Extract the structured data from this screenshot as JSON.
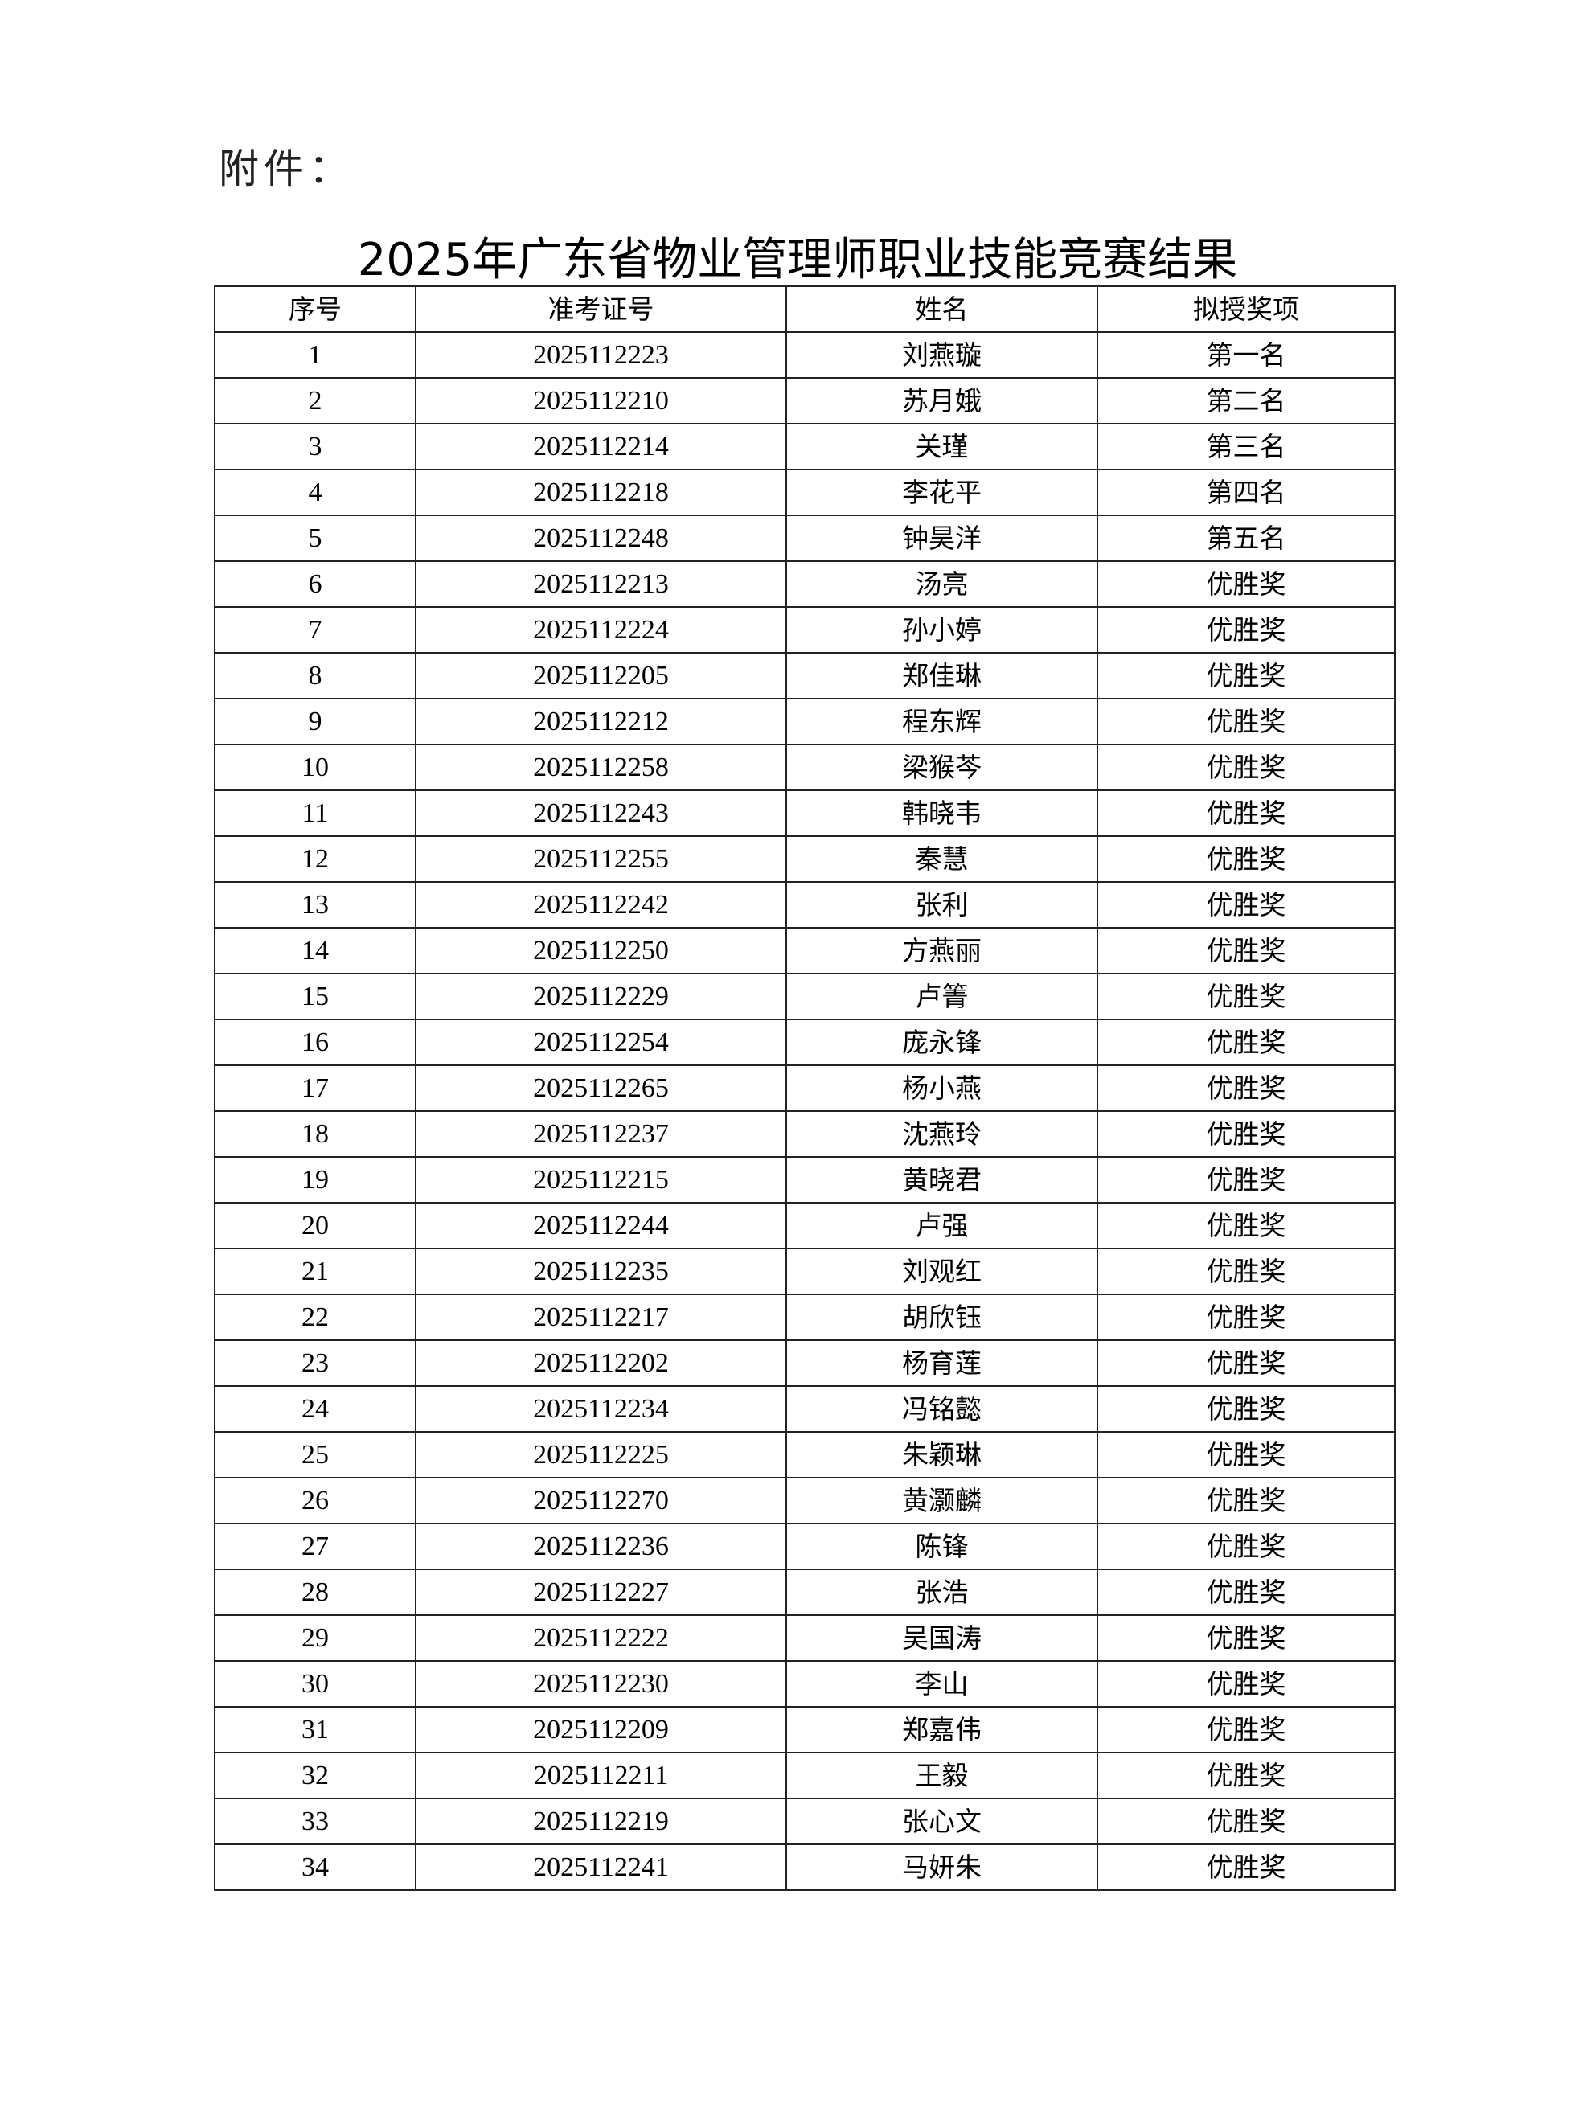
{
  "attachment_label": "附件：",
  "title": "2025年广东省物业管理师职业技能竞赛结果",
  "table": {
    "headers": [
      "序号",
      "准考证号",
      "姓名",
      "拟授奖项"
    ],
    "rows": [
      [
        "1",
        "2025112223",
        "刘燕璇",
        "第一名"
      ],
      [
        "2",
        "2025112210",
        "苏月娥",
        "第二名"
      ],
      [
        "3",
        "2025112214",
        "关瑾",
        "第三名"
      ],
      [
        "4",
        "2025112218",
        "李花平",
        "第四名"
      ],
      [
        "5",
        "2025112248",
        "钟昊洋",
        "第五名"
      ],
      [
        "6",
        "2025112213",
        "汤亮",
        "优胜奖"
      ],
      [
        "7",
        "2025112224",
        "孙小婷",
        "优胜奖"
      ],
      [
        "8",
        "2025112205",
        "郑佳琳",
        "优胜奖"
      ],
      [
        "9",
        "2025112212",
        "程东辉",
        "优胜奖"
      ],
      [
        "10",
        "2025112258",
        "梁猴芩",
        "优胜奖"
      ],
      [
        "11",
        "2025112243",
        "韩晓韦",
        "优胜奖"
      ],
      [
        "12",
        "2025112255",
        "秦慧",
        "优胜奖"
      ],
      [
        "13",
        "2025112242",
        "张利",
        "优胜奖"
      ],
      [
        "14",
        "2025112250",
        "方燕丽",
        "优胜奖"
      ],
      [
        "15",
        "2025112229",
        "卢箐",
        "优胜奖"
      ],
      [
        "16",
        "2025112254",
        "庞永锋",
        "优胜奖"
      ],
      [
        "17",
        "2025112265",
        "杨小燕",
        "优胜奖"
      ],
      [
        "18",
        "2025112237",
        "沈燕玲",
        "优胜奖"
      ],
      [
        "19",
        "2025112215",
        "黄晓君",
        "优胜奖"
      ],
      [
        "20",
        "2025112244",
        "卢强",
        "优胜奖"
      ],
      [
        "21",
        "2025112235",
        "刘观红",
        "优胜奖"
      ],
      [
        "22",
        "2025112217",
        "胡欣钰",
        "优胜奖"
      ],
      [
        "23",
        "2025112202",
        "杨育莲",
        "优胜奖"
      ],
      [
        "24",
        "2025112234",
        "冯铭懿",
        "优胜奖"
      ],
      [
        "25",
        "2025112225",
        "朱颖琳",
        "优胜奖"
      ],
      [
        "26",
        "2025112270",
        "黄灏麟",
        "优胜奖"
      ],
      [
        "27",
        "2025112236",
        "陈锋",
        "优胜奖"
      ],
      [
        "28",
        "2025112227",
        "张浩",
        "优胜奖"
      ],
      [
        "29",
        "2025112222",
        "吴国涛",
        "优胜奖"
      ],
      [
        "30",
        "2025112230",
        "李山",
        "优胜奖"
      ],
      [
        "31",
        "2025112209",
        "郑嘉伟",
        "优胜奖"
      ],
      [
        "32",
        "2025112211",
        "王毅",
        "优胜奖"
      ],
      [
        "33",
        "2025112219",
        "张心文",
        "优胜奖"
      ],
      [
        "34",
        "2025112241",
        "马妍朱",
        "优胜奖"
      ]
    ]
  }
}
